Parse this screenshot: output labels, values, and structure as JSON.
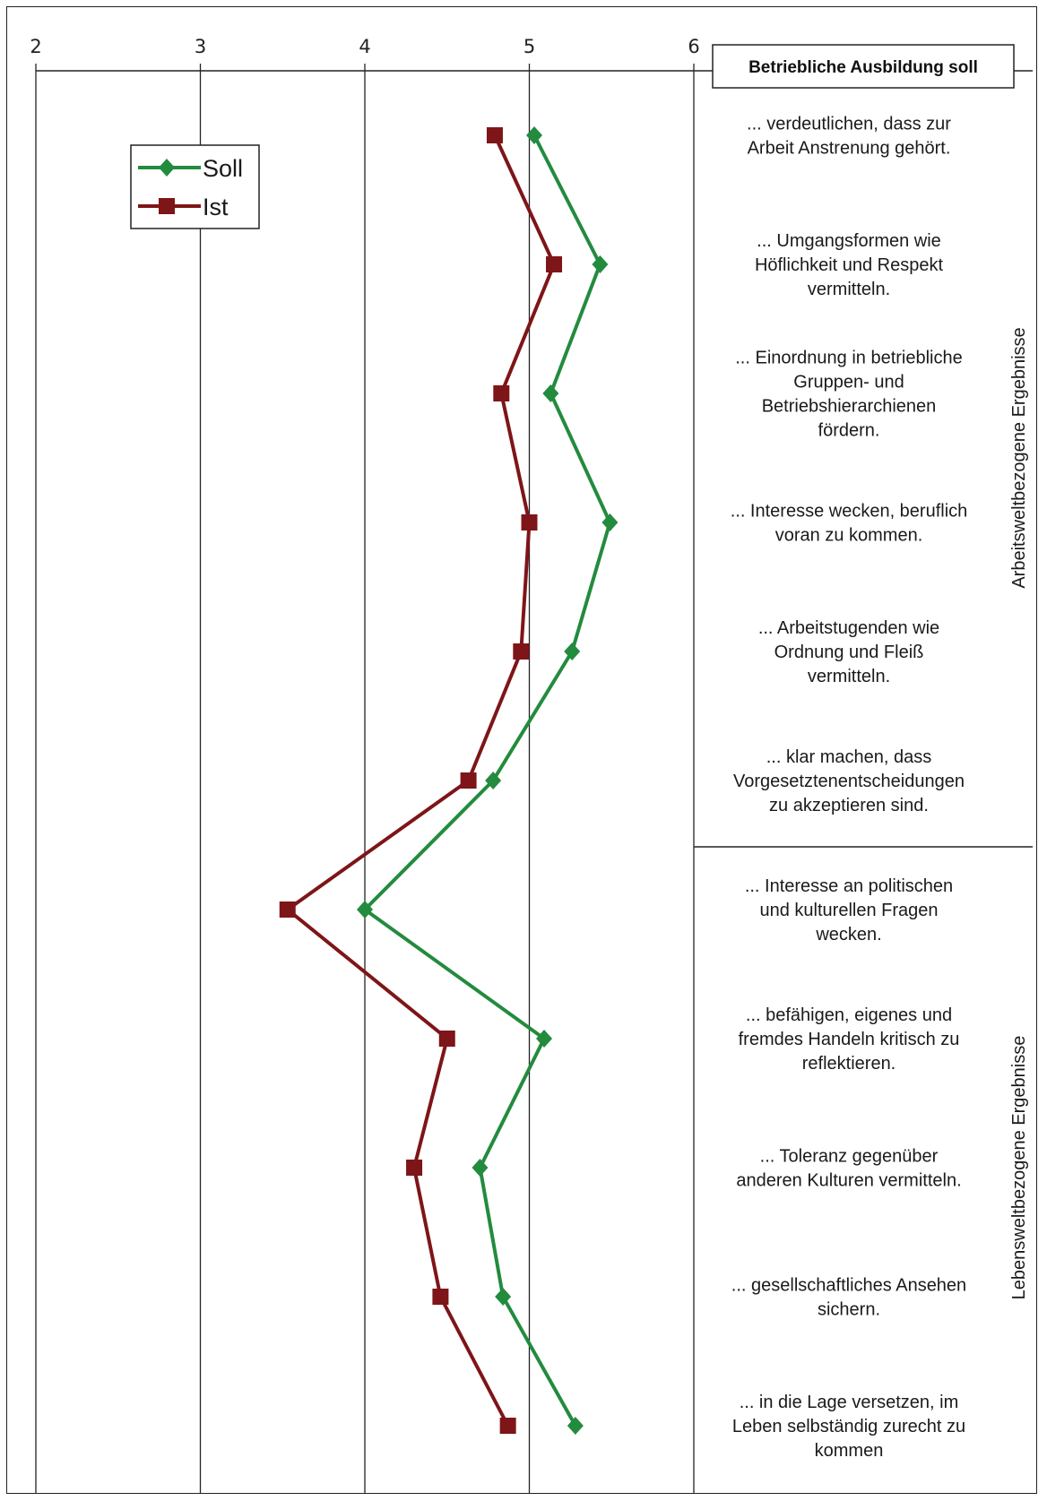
{
  "chart_data": {
    "type": "line",
    "orientation": "horizontal",
    "title": "Betriebliche Ausbildung soll",
    "xlim": [
      2,
      6
    ],
    "x_ticks": [
      "2",
      "3",
      "4",
      "5",
      "6"
    ],
    "grid": true,
    "legend_position": "top-left",
    "categories": [
      "... verdeutlichen, dass zur\nArbeit Anstrenung gehört.",
      "... Umgangsformen wie\nHöflichkeit und Respekt\nvermitteln.",
      "... Einordnung in betriebliche\nGruppen- und\nBetriebshierarchienen\nfördern.",
      "... Interesse wecken, beruflich\nvoran zu kommen.",
      "... Arbeitstugenden wie\nOrdnung und Fleiß\nvermitteln.",
      "... klar machen, dass\nVorgesetztenentscheidungen\nzu akzeptieren sind.",
      "... Interesse an politischen\nund kulturellen Fragen\nwecken.",
      "... befähigen, eigenes und\nfremdes Handeln kritisch zu\nreflektieren.",
      "... Toleranz gegenüber\nanderen Kulturen vermitteln.",
      "... gesellschaftliches Ansehen\nsichern.",
      "... in die Lage versetzen, im\nLeben selbständig zurecht zu\nkommen"
    ],
    "groups": [
      {
        "label": "Arbeitsweltbezogene Ergebnisse",
        "start": 0,
        "end": 5
      },
      {
        "label": "Lebensweltbezogene Ergebnisse",
        "start": 6,
        "end": 10
      }
    ],
    "series": [
      {
        "name": "Soll",
        "color": "#238b3e",
        "marker": "diamond",
        "values": [
          5.03,
          5.43,
          5.13,
          5.49,
          5.26,
          4.78,
          4.0,
          5.09,
          4.7,
          4.84,
          5.28
        ]
      },
      {
        "name": "Ist",
        "color": "#7e1518",
        "marker": "square",
        "values": [
          4.79,
          5.15,
          4.83,
          5.0,
          4.95,
          4.63,
          3.53,
          4.5,
          4.3,
          4.46,
          4.87
        ]
      }
    ]
  }
}
